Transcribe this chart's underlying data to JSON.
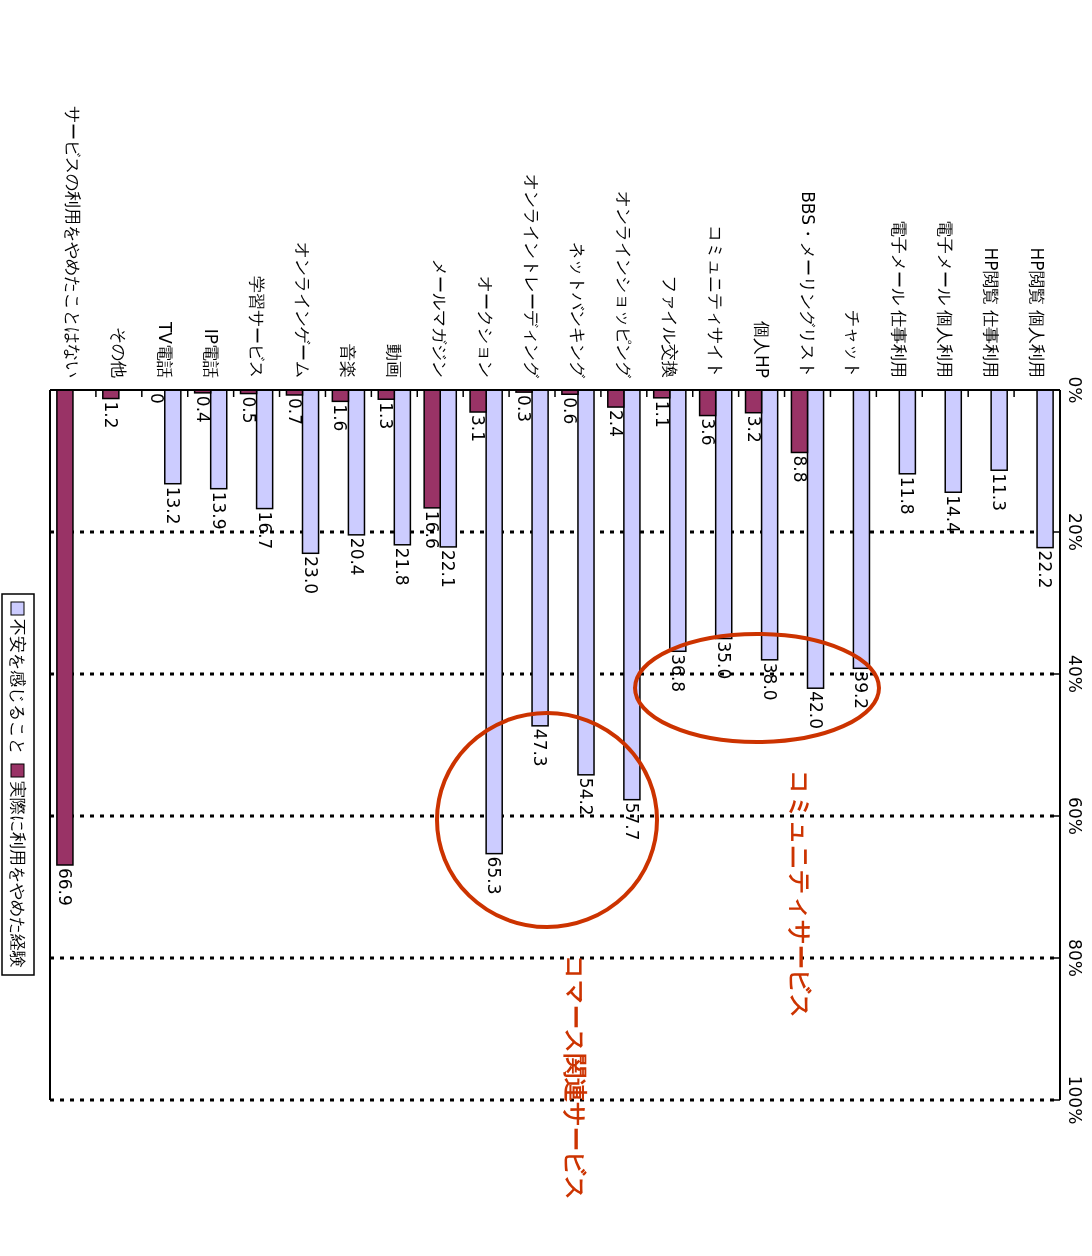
{
  "chart_data": {
    "type": "bar",
    "categories": [
      "サービスの利用をやめたことはない",
      "その他",
      "TV電話",
      "IP電話",
      "学習サービス",
      "オンラインゲーム",
      "音楽",
      "動画",
      "メールマガジン",
      "オークション",
      "オンライントレーディング",
      "ネットバンキング",
      "オンラインショッピング",
      "ファイル交換",
      "コミュニティサイト",
      "個人HP",
      "BBS・メーリングリスト",
      "チャット",
      "電子メール 仕事利用",
      "電子メール 個人利用",
      "HP閲覧 仕事利用",
      "HP閲覧 個人利用"
    ],
    "series": [
      {
        "name": "不安を感じること",
        "color": "#ccccff",
        "values": [
          null,
          null,
          13.2,
          13.9,
          16.7,
          23.0,
          20.4,
          21.8,
          22.1,
          65.3,
          47.3,
          54.2,
          57.7,
          36.8,
          35.0,
          38.0,
          42.0,
          39.2,
          11.8,
          14.4,
          11.3,
          22.2
        ],
        "value_labels": [
          null,
          null,
          "13.2",
          "13.9",
          "16.7",
          "23.0",
          "20.4",
          "21.8",
          "22.1",
          "65.3",
          "47.3",
          "54.2",
          "57.7",
          "36.8",
          "35.0",
          "38.0",
          "42.0",
          "39.2",
          "11.8",
          "14.4",
          "11.3",
          "22.2"
        ]
      },
      {
        "name": "実際に利用をやめた経験",
        "color": "#993366",
        "values": [
          66.9,
          1.2,
          0,
          0.4,
          0.5,
          0.7,
          1.6,
          1.3,
          16.6,
          3.1,
          0.3,
          0.6,
          2.4,
          1.1,
          3.6,
          3.2,
          8.8,
          null,
          null,
          null,
          null,
          null
        ],
        "value_labels": [
          "66.9",
          "1.2",
          "0",
          "0.4",
          "0.5",
          "0.7",
          "1.6",
          "1.3",
          "16.6",
          "3.1",
          "0.3",
          "0.6",
          "2.4",
          "1.1",
          "3.6",
          "3.2",
          "8.8",
          null,
          null,
          null,
          null,
          null
        ]
      }
    ],
    "ylim": [
      100,
      0
    ],
    "yticks": [
      {
        "value": 0,
        "label": "0%"
      },
      {
        "value": 20,
        "label": "20%"
      },
      {
        "value": 40,
        "label": "40%"
      },
      {
        "value": 60,
        "label": "60%"
      },
      {
        "value": 80,
        "label": "80%"
      },
      {
        "value": 100,
        "label": "100%"
      }
    ],
    "grid": "y",
    "legend": "left",
    "annotations": [
      "コミュニティサービス",
      "コマース関連サービス"
    ]
  }
}
